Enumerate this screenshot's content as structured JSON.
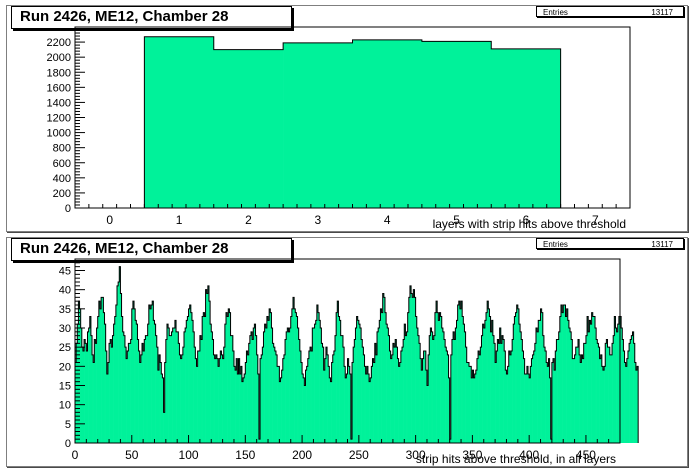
{
  "chart_data": [
    {
      "type": "bar",
      "title": "Run 2426, ME12, Chamber 28",
      "xlabel": "layers with strip hits above threshold",
      "ylabel": "",
      "stats": {
        "label": "Entries",
        "value": "13117"
      },
      "xlim": [
        -0.5,
        7.5
      ],
      "ylim": [
        0,
        2400
      ],
      "xticks": [
        0,
        1,
        2,
        3,
        4,
        5,
        6,
        7
      ],
      "yticks": [
        0,
        200,
        400,
        600,
        800,
        1000,
        1200,
        1400,
        1600,
        1800,
        2000,
        2200
      ],
      "categories": [
        1,
        2,
        3,
        4,
        5,
        6
      ],
      "values": [
        2270,
        2100,
        2190,
        2230,
        2210,
        2110
      ],
      "fill_color": "#00f29a",
      "line_color": "#000000"
    },
    {
      "type": "bar",
      "title": "Run 2426, ME12, Chamber 28",
      "xlabel": "strip hits above threshold, in all layers",
      "ylabel": "",
      "stats": {
        "label": "Entries",
        "value": "13117"
      },
      "xlim": [
        0,
        480
      ],
      "ylim": [
        0,
        48
      ],
      "xticks": [
        0,
        50,
        100,
        150,
        200,
        250,
        300,
        350,
        400,
        450
      ],
      "yticks": [
        0,
        5,
        10,
        15,
        20,
        25,
        30,
        35,
        40,
        45
      ],
      "bin_start": 0,
      "bin_width": 1,
      "values": [
        21,
        26,
        31,
        37,
        35,
        30,
        25,
        24,
        27,
        26,
        24,
        29,
        30,
        33,
        28,
        23,
        21,
        27,
        26,
        30,
        33,
        37,
        35,
        38,
        38,
        34,
        31,
        24,
        18,
        21,
        26,
        27,
        25,
        28,
        31,
        33,
        36,
        41,
        42,
        46,
        39,
        33,
        29,
        28,
        25,
        22,
        24,
        26,
        26,
        27,
        35,
        37,
        35,
        32,
        31,
        27,
        24,
        21,
        23,
        26,
        24,
        27,
        28,
        28,
        31,
        36,
        35,
        36,
        37,
        32,
        31,
        28,
        25,
        19,
        23,
        21,
        18,
        17,
        8,
        21,
        27,
        31,
        30,
        28,
        28,
        29,
        30,
        30,
        32,
        29,
        29,
        26,
        23,
        22,
        23,
        25,
        29,
        30,
        32,
        33,
        35,
        36,
        34,
        32,
        29,
        25,
        22,
        20,
        24,
        24,
        28,
        27,
        33,
        34,
        33,
        40,
        39,
        41,
        37,
        31,
        29,
        27,
        23,
        22,
        23,
        22,
        20,
        22,
        24,
        23,
        22,
        25,
        31,
        34,
        33,
        35,
        34,
        28,
        28,
        24,
        20,
        19,
        22,
        18,
        22,
        18,
        20,
        16,
        17,
        18,
        21,
        24,
        23,
        26,
        28,
        29,
        27,
        30,
        31,
        28,
        23,
        18,
        1,
        22,
        23,
        25,
        29,
        31,
        30,
        33,
        32,
        35,
        34,
        30,
        26,
        25,
        24,
        23,
        20,
        20,
        16,
        17,
        19,
        22,
        23,
        27,
        29,
        30,
        29,
        30,
        33,
        35,
        38,
        35,
        34,
        33,
        30,
        27,
        24,
        21,
        18,
        17,
        15,
        19,
        20,
        22,
        24,
        25,
        24,
        30,
        30,
        31,
        32,
        36,
        34,
        32,
        30,
        26,
        25,
        19,
        22,
        25,
        23,
        20,
        17,
        16,
        21,
        23,
        24,
        28,
        34,
        37,
        33,
        32,
        28,
        28,
        25,
        20,
        17,
        18,
        22,
        20,
        18,
        1,
        21,
        25,
        27,
        30,
        33,
        32,
        31,
        30,
        27,
        25,
        23,
        20,
        18,
        20,
        18,
        16,
        17,
        20,
        22,
        21,
        26,
        23,
        29,
        30,
        32,
        35,
        34,
        39,
        38,
        34,
        31,
        30,
        28,
        24,
        22,
        23,
        26,
        25,
        27,
        25,
        22,
        20,
        21,
        24,
        25,
        27,
        31,
        28,
        29,
        34,
        38,
        41,
        39,
        38,
        40,
        38,
        33,
        30,
        28,
        26,
        22,
        19,
        22,
        24,
        24,
        19,
        15,
        23,
        28,
        30,
        29,
        27,
        28,
        34,
        37,
        34,
        32,
        34,
        33,
        30,
        29,
        27,
        25,
        24,
        23,
        17,
        1,
        23,
        27,
        29,
        27,
        30,
        32,
        36,
        37,
        35,
        37,
        33,
        31,
        29,
        25,
        21,
        21,
        20,
        20,
        17,
        19,
        17,
        18,
        19,
        22,
        24,
        23,
        25,
        28,
        31,
        30,
        32,
        34,
        37,
        35,
        33,
        29,
        32,
        28,
        26,
        21,
        24,
        27,
        26,
        30,
        26,
        28,
        27,
        24,
        19,
        18,
        20,
        24,
        23,
        24,
        27,
        31,
        33,
        34,
        36,
        35,
        31,
        29,
        27,
        24,
        22,
        18,
        18,
        20,
        18,
        17,
        20,
        22,
        23,
        24,
        26,
        30,
        29,
        32,
        32,
        35,
        34,
        28,
        25,
        24,
        21,
        20,
        22,
        17,
        1,
        21,
        22,
        19,
        24,
        27,
        27,
        29,
        33,
        36,
        34,
        36,
        36,
        33,
        35,
        32,
        30,
        29,
        27,
        22,
        22,
        23,
        25,
        25,
        27,
        23,
        21,
        23,
        22,
        26,
        26,
        28,
        33,
        29,
        32,
        31,
        34,
        33,
        33,
        30,
        27,
        26,
        25,
        22,
        23,
        20,
        19,
        20,
        26,
        27,
        25,
        25,
        23,
        23,
        26,
        28,
        33,
        30,
        29,
        31,
        33,
        33,
        30,
        27,
        24,
        21,
        20,
        22,
        24,
        26,
        27,
        28,
        29,
        26,
        21,
        19,
        20
      ],
      "fill_color": "#00f29a",
      "line_color": "#000000"
    }
  ]
}
